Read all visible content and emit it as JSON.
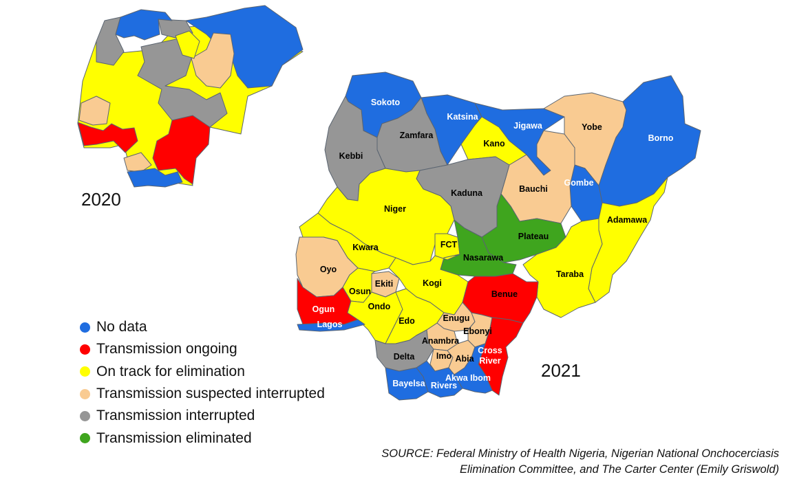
{
  "colors": {
    "no_data": "#1f6de0",
    "ongoing": "#ff0000",
    "on_track": "#ffff00",
    "suspected": "#f9cb92",
    "interrupted": "#969696",
    "eliminated": "#3fa51e",
    "label_light": "#ffffff",
    "label_dark": "#000000"
  },
  "map_2020": {
    "year": "2020"
  },
  "map_2021": {
    "year": "2021",
    "states": [
      {
        "name": "Sokoto",
        "status": "no_data"
      },
      {
        "name": "Katsina",
        "status": "no_data"
      },
      {
        "name": "Jigawa",
        "status": "no_data"
      },
      {
        "name": "Zamfara",
        "status": "interrupted"
      },
      {
        "name": "Kebbi",
        "status": "interrupted"
      },
      {
        "name": "Kano",
        "status": "on_track"
      },
      {
        "name": "Yobe",
        "status": "suspected"
      },
      {
        "name": "Borno",
        "status": "no_data"
      },
      {
        "name": "Gombe",
        "status": "no_data"
      },
      {
        "name": "Bauchi",
        "status": "suspected"
      },
      {
        "name": "Kaduna",
        "status": "interrupted"
      },
      {
        "name": "Niger",
        "status": "on_track"
      },
      {
        "name": "Adamawa",
        "status": "on_track"
      },
      {
        "name": "Plateau",
        "status": "eliminated"
      },
      {
        "name": "FCT",
        "status": "on_track"
      },
      {
        "name": "Nasarawa",
        "status": "eliminated"
      },
      {
        "name": "Kwara",
        "status": "on_track"
      },
      {
        "name": "Oyo",
        "status": "suspected"
      },
      {
        "name": "Taraba",
        "status": "on_track"
      },
      {
        "name": "Ekiti",
        "status": "suspected"
      },
      {
        "name": "Kogi",
        "status": "on_track"
      },
      {
        "name": "Osun",
        "status": "on_track"
      },
      {
        "name": "Benue",
        "status": "ongoing"
      },
      {
        "name": "Ogun",
        "status": "ongoing"
      },
      {
        "name": "Ondo",
        "status": "on_track"
      },
      {
        "name": "Lagos",
        "status": "no_data"
      },
      {
        "name": "Edo",
        "status": "on_track"
      },
      {
        "name": "Enugu",
        "status": "suspected"
      },
      {
        "name": "Ebonyi",
        "status": "suspected"
      },
      {
        "name": "Anambra",
        "status": "suspected"
      },
      {
        "name": "Delta",
        "status": "interrupted"
      },
      {
        "name": "Imo",
        "status": "suspected"
      },
      {
        "name": "Abia",
        "status": "suspected"
      },
      {
        "name": "Cross River",
        "status": "ongoing"
      },
      {
        "name": "Akwa Ibom",
        "status": "no_data"
      },
      {
        "name": "Bayelsa",
        "status": "no_data"
      },
      {
        "name": "Rivers",
        "status": "no_data"
      }
    ]
  },
  "legend": [
    {
      "key": "no_data",
      "label": "No data"
    },
    {
      "key": "ongoing",
      "label": "Transmission ongoing"
    },
    {
      "key": "on_track",
      "label": "On track for elimination"
    },
    {
      "key": "suspected",
      "label": "Transmission suspected interrupted"
    },
    {
      "key": "interrupted",
      "label": "Transmission interrupted"
    },
    {
      "key": "eliminated",
      "label": "Transmission eliminated"
    }
  ],
  "source": {
    "line1": "SOURCE: Federal Ministry of Health Nigeria, Nigerian National Onchocerciasis",
    "line2": "Elimination Committee, and The Carter Center (Emily Griswold)"
  }
}
